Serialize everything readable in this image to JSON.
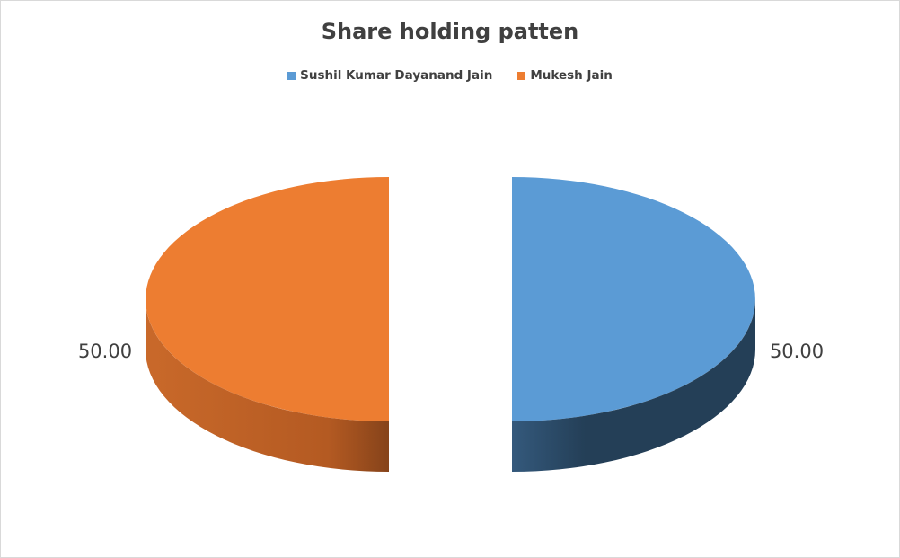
{
  "chart_data": {
    "type": "pie",
    "style": "3d-exploded",
    "title": "Share holding patten",
    "legend_position": "top",
    "series": [
      {
        "name": "Sushil Kumar Dayanand Jain",
        "value": 50.0,
        "label": "50.00",
        "color": "#5b9bd5",
        "side_color": "#243f57"
      },
      {
        "name": "Mukesh Jain",
        "value": 50.0,
        "label": "50.00",
        "color": "#ed7d31",
        "side_color": "#a24f1b"
      }
    ]
  }
}
